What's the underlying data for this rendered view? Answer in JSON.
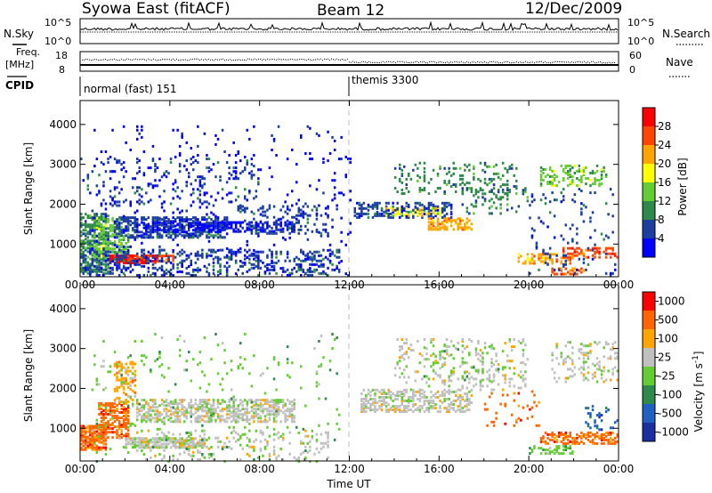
{
  "header": {
    "station": "Syowa East (fitACF)",
    "beam": "Beam 12",
    "date": "12/Dec/2009"
  },
  "params": {
    "nsky_label": "N.Sky",
    "nsearch_label": "N.Search",
    "freq_label_1": "Freq.",
    "freq_label_2": "[MHz]",
    "nave_label": "Nave",
    "cpid_label": "CPID",
    "nsky_ticks": [
      "10^5",
      "10^0"
    ],
    "nsearch_ticks": [
      "10^5",
      "10^0"
    ],
    "freq_ticks": [
      "18",
      "8"
    ],
    "nave_ticks": [
      "60",
      "0"
    ],
    "cpid_segments": [
      {
        "name": "normal (fast) 151",
        "start_hour": 0
      },
      {
        "name": "themis 3300",
        "start_hour": 12.0
      }
    ]
  },
  "chart_data": [
    {
      "type": "heatmap",
      "panel": "power",
      "xlabel": "Time UT",
      "ylabel": "Slant Range [km]",
      "x_ticks": [
        "00:00",
        "04:00",
        "08:00",
        "12:00",
        "16:00",
        "20:00",
        "00:00"
      ],
      "xlim_hours": [
        0,
        24
      ],
      "y_ticks": [
        1000,
        2000,
        3000,
        4000
      ],
      "ylim": [
        180,
        4600
      ],
      "colorbar_label": "Power [dB]",
      "colorbar_ticks": [
        "4",
        "8",
        "12",
        "16",
        "20",
        "24",
        "28"
      ],
      "colors": [
        "#0000ff",
        "#1c3f9f",
        "#2e8a4a",
        "#66cc33",
        "#ffff00",
        "#ffa500",
        "#ff4500",
        "#ff0000"
      ],
      "dashed_vertical_at_hour": 12.0,
      "regions": [
        {
          "t0": 0.0,
          "t1": 1.3,
          "r0": 300,
          "r1": 1800,
          "c": 2,
          "d": 0.55
        },
        {
          "t0": 0.6,
          "t1": 2.2,
          "r0": 600,
          "r1": 1700,
          "c": 3,
          "d": 0.45
        },
        {
          "t0": 1.3,
          "t1": 3.5,
          "r0": 560,
          "r1": 780,
          "c": 7,
          "d": 0.8
        },
        {
          "t0": 2.0,
          "t1": 4.2,
          "r0": 600,
          "r1": 760,
          "c": 6,
          "d": 0.5
        },
        {
          "t0": 1.5,
          "t1": 6.5,
          "r0": 1200,
          "r1": 1700,
          "c": 1,
          "d": 0.55
        },
        {
          "t0": 2.5,
          "t1": 9.5,
          "r0": 1350,
          "r1": 1600,
          "c": 0,
          "d": 0.4
        },
        {
          "t0": 0.0,
          "t1": 11.5,
          "r0": 250,
          "r1": 900,
          "c": 1,
          "d": 0.25
        },
        {
          "t0": 0.0,
          "t1": 8.0,
          "r0": 2000,
          "r1": 3200,
          "c": 1,
          "d": 0.08
        },
        {
          "t0": 7.0,
          "t1": 11.0,
          "r0": 1300,
          "r1": 2000,
          "c": 1,
          "d": 0.2
        },
        {
          "t0": 0.5,
          "t1": 12.0,
          "r0": 200,
          "r1": 4000,
          "c": 0,
          "d": 0.03
        },
        {
          "t0": 12.2,
          "t1": 16.5,
          "r0": 1700,
          "r1": 2100,
          "c": 1,
          "d": 0.45
        },
        {
          "t0": 13.5,
          "t1": 16.0,
          "r0": 1750,
          "r1": 1950,
          "c": 4,
          "d": 0.35
        },
        {
          "t0": 15.5,
          "t1": 17.5,
          "r0": 1400,
          "r1": 1700,
          "c": 5,
          "d": 0.45
        },
        {
          "t0": 14.0,
          "t1": 19.5,
          "r0": 2300,
          "r1": 3100,
          "c": 2,
          "d": 0.15
        },
        {
          "t0": 17.0,
          "t1": 20.0,
          "r0": 1800,
          "r1": 2600,
          "c": 2,
          "d": 0.15
        },
        {
          "t0": 20.5,
          "t1": 23.5,
          "r0": 2500,
          "r1": 3000,
          "c": 3,
          "d": 0.3
        },
        {
          "t0": 19.5,
          "t1": 22.0,
          "r0": 550,
          "r1": 800,
          "c": 5,
          "d": 0.4
        },
        {
          "t0": 21.5,
          "t1": 24.0,
          "r0": 700,
          "r1": 950,
          "c": 6,
          "d": 0.45
        },
        {
          "t0": 21.0,
          "t1": 22.5,
          "r0": 280,
          "r1": 450,
          "c": 6,
          "d": 0.55
        },
        {
          "t0": 20.0,
          "t1": 24.0,
          "r0": 250,
          "r1": 2500,
          "c": 1,
          "d": 0.05
        }
      ]
    },
    {
      "type": "heatmap",
      "panel": "velocity",
      "xlabel": "Time UT",
      "ylabel": "Slant Range [km]",
      "x_ticks": [
        "00:00",
        "04:00",
        "08:00",
        "12:00",
        "16:00",
        "20:00",
        "00:00"
      ],
      "xlim_hours": [
        0,
        24
      ],
      "y_ticks": [
        1000,
        2000,
        3000,
        4000
      ],
      "ylim": [
        180,
        4600
      ],
      "colorbar_label": "Velocity [m s^-1]",
      "colorbar_ticks": [
        "1000",
        "500",
        "100",
        "25",
        "-25",
        "-100",
        "-500",
        "-1000"
      ],
      "colors": [
        "#1c2fa0",
        "#2060c0",
        "#2e8a4a",
        "#66cc33",
        "#c0c0c0",
        "#ffa500",
        "#ff6600",
        "#ff0000"
      ],
      "dashed_vertical_at_hour": 12.0,
      "regions": [
        {
          "t0": 0.0,
          "t1": 1.2,
          "r0": 500,
          "r1": 1100,
          "c": 6,
          "d": 0.75
        },
        {
          "t0": 0.8,
          "t1": 2.2,
          "r0": 800,
          "r1": 1700,
          "c": 6,
          "d": 0.55
        },
        {
          "t0": 1.5,
          "t1": 2.5,
          "r0": 1700,
          "r1": 2700,
          "c": 5,
          "d": 0.3
        },
        {
          "t0": 2.0,
          "t1": 5.5,
          "r0": 550,
          "r1": 800,
          "c": 4,
          "d": 0.7
        },
        {
          "t0": 2.5,
          "t1": 9.5,
          "r0": 1200,
          "r1": 1750,
          "c": 4,
          "d": 0.5
        },
        {
          "t0": 2.5,
          "t1": 11.0,
          "r0": 250,
          "r1": 1000,
          "c": 4,
          "d": 0.12
        },
        {
          "t0": 0.5,
          "t1": 11.5,
          "r0": 200,
          "r1": 3400,
          "c": 3,
          "d": 0.03
        },
        {
          "t0": 12.5,
          "t1": 17.5,
          "r0": 1450,
          "r1": 2000,
          "c": 4,
          "d": 0.45
        },
        {
          "t0": 14.0,
          "t1": 20.0,
          "r0": 2000,
          "r1": 3300,
          "c": 4,
          "d": 0.12
        },
        {
          "t0": 15.0,
          "t1": 19.0,
          "r0": 2200,
          "r1": 3200,
          "c": 3,
          "d": 0.06
        },
        {
          "t0": 18.0,
          "t1": 20.5,
          "r0": 1100,
          "r1": 2000,
          "c": 6,
          "d": 0.08
        },
        {
          "t0": 20.5,
          "t1": 24.0,
          "r0": 650,
          "r1": 950,
          "c": 6,
          "d": 0.5
        },
        {
          "t0": 20.0,
          "t1": 22.0,
          "r0": 400,
          "r1": 600,
          "c": 3,
          "d": 0.4
        },
        {
          "t0": 21.0,
          "t1": 24.0,
          "r0": 2200,
          "r1": 3200,
          "c": 4,
          "d": 0.2
        },
        {
          "t0": 22.5,
          "t1": 24.0,
          "r0": 1000,
          "r1": 1600,
          "c": 1,
          "d": 0.15
        }
      ]
    }
  ]
}
